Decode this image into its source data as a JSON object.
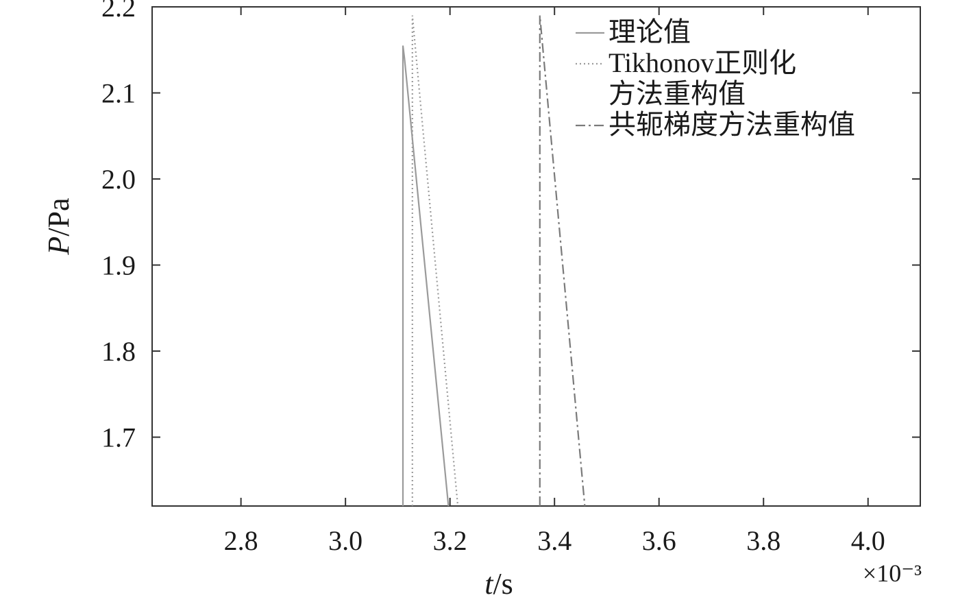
{
  "chart_data": {
    "type": "line",
    "title": "",
    "xlabel": {
      "var": "t",
      "unit": "/s"
    },
    "ylabel": {
      "var": "P",
      "unit": "/Pa"
    },
    "x_scale_label": "×10⁻³",
    "xlim": [
      2.63,
      4.1
    ],
    "ylim": [
      1.62,
      2.2
    ],
    "x_ticks": [
      2.8,
      3.0,
      3.2,
      3.4,
      3.6,
      3.8,
      4.0
    ],
    "x_tick_labels": [
      "2.8",
      "3.0",
      "3.2",
      "3.4",
      "3.6",
      "3.8",
      "4.0"
    ],
    "y_ticks": [
      1.7,
      1.8,
      1.9,
      2.0,
      2.1,
      2.2
    ],
    "y_tick_labels": [
      "1.7",
      "1.8",
      "1.9",
      "2.0",
      "2.1",
      "2.2"
    ],
    "grid": false,
    "legend_position": "top-right",
    "series": [
      {
        "name": "理论值",
        "legend_lines": [
          "理论值"
        ],
        "style": "solid",
        "color": "#9a9a9a",
        "x": [
          3.11,
          3.11,
          3.113,
          3.197
        ],
        "y": [
          1.62,
          2.155,
          2.14,
          1.62
        ]
      },
      {
        "name": "Tikhonov正则化方法重构值",
        "legend_lines": [
          "Tikhonov正则化",
          "方法重构值"
        ],
        "style": "dotted",
        "color": "#9a9a9a",
        "x": [
          3.128,
          3.128,
          3.131,
          3.215
        ],
        "y": [
          1.62,
          2.19,
          2.17,
          1.62
        ]
      },
      {
        "name": "共轭梯度方法重构值",
        "legend_lines": [
          "共轭梯度方法重构值"
        ],
        "style": "dashdot",
        "color": "#7a7a7a",
        "x": [
          3.372,
          3.372,
          3.375,
          3.458
        ],
        "y": [
          1.62,
          2.19,
          2.17,
          1.62
        ]
      }
    ]
  }
}
